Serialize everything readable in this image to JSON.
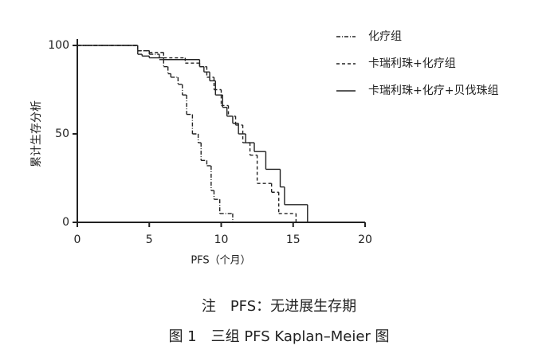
{
  "chart_data": {
    "type": "step",
    "y_label": "累计生存分析",
    "x_label": "PFS（个月）",
    "note": "注　PFS：无进展生存期",
    "caption": "图 1　三组 PFS Kaplan–Meier 图",
    "xlim": [
      0,
      20
    ],
    "xticks": [
      0,
      5,
      10,
      15,
      20
    ],
    "ylim": [
      0,
      100
    ],
    "yticks": [
      0,
      50,
      100
    ],
    "series": [
      {
        "name": "化疗组",
        "color": "#222",
        "dash": "dashdot",
        "x": [
          0,
          4.2,
          5,
          5.7,
          6,
          6.3,
          6.5,
          7,
          7.3,
          7.6,
          8,
          8.4,
          8.6,
          9,
          9.3,
          9.5,
          9.9,
          10.8
        ],
        "values": [
          100,
          97,
          95,
          92,
          88,
          84,
          82,
          78,
          72,
          61,
          50,
          45,
          35,
          32,
          18,
          13,
          5,
          0
        ]
      },
      {
        "name": "卡瑞利珠+化疗组",
        "color": "#222",
        "dash": "dashed",
        "x": [
          0,
          4.2,
          5,
          6,
          7.5,
          8.5,
          9,
          9.5,
          10,
          10.5,
          11,
          11.5,
          12,
          12.5,
          13.5,
          14,
          15.2
        ],
        "values": [
          100,
          97,
          96,
          93,
          90,
          88,
          82,
          75,
          66,
          60,
          55,
          45,
          38,
          22,
          17,
          5,
          0
        ]
      },
      {
        "name": "卡瑞利珠+化疗+贝伐珠组",
        "color": "#222",
        "dash": "solid",
        "x": [
          0,
          4.2,
          4.5,
          5,
          6,
          8.5,
          8.8,
          9.2,
          9.6,
          10.1,
          10.4,
          10.8,
          11.2,
          11.7,
          12.3,
          13.1,
          14.1,
          14.4,
          16
        ],
        "values": [
          100,
          95,
          94,
          93,
          92,
          88,
          85,
          80,
          72,
          65,
          60,
          56,
          50,
          45,
          40,
          30,
          20,
          10,
          0
        ]
      }
    ]
  }
}
